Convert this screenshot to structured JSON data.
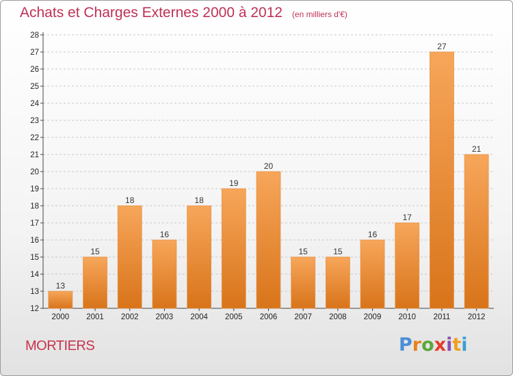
{
  "header": {
    "title": "Achats et Charges Externes 2000 à 2012",
    "subtitle": "(en milliers d'€)"
  },
  "footer": {
    "city": "MORTIERS",
    "logo_letters": [
      "P",
      "r",
      "o",
      "x",
      "i",
      "t",
      "i"
    ]
  },
  "colors": {
    "title": "#bf3055",
    "bar_top": "#f7a65a",
    "bar_bottom": "#d8741a",
    "logo": [
      "#4a8fd6",
      "#e8821a",
      "#5aa83a",
      "#e33b2e",
      "#8b4fb0",
      "#f0a020",
      "#3a9fd6"
    ]
  },
  "chart_data": {
    "type": "bar",
    "categories": [
      "2000",
      "2001",
      "2002",
      "2003",
      "2004",
      "2005",
      "2006",
      "2007",
      "2008",
      "2009",
      "2010",
      "2011",
      "2012"
    ],
    "values": [
      13,
      15,
      18,
      16,
      18,
      19,
      20,
      15,
      15,
      16,
      17,
      27,
      21
    ],
    "data_labels": [
      "13",
      "15",
      "18",
      "16",
      "18",
      "19",
      "20",
      "15",
      "15",
      "16",
      "17",
      "27",
      "21"
    ],
    "y_ticks": [
      "12",
      "13",
      "14",
      "15",
      "16",
      "17",
      "18",
      "19",
      "20",
      "21",
      "22",
      "23",
      "24",
      "25",
      "26",
      "27",
      "28"
    ],
    "ylim": [
      12,
      28
    ],
    "grid": "horizontal-dashed",
    "legend": "none"
  }
}
